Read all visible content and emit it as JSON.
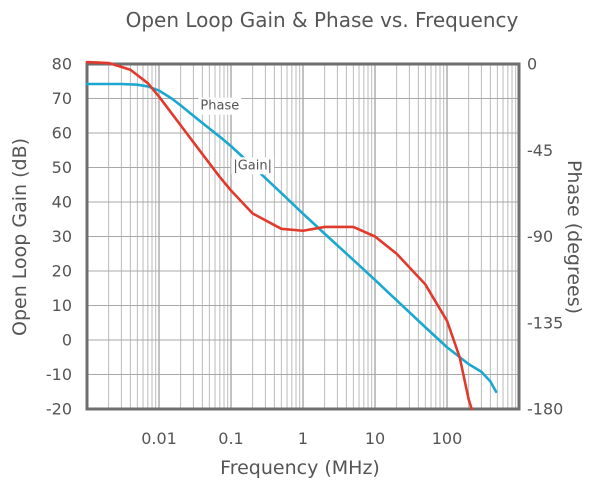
{
  "chart_data": {
    "type": "line",
    "title": "Open Loop Gain & Phase vs. Frequency",
    "xlabel": "Frequency (MHz)",
    "ylabel": "Open Loop Gain (dB)",
    "y2label": "Phase (degrees)",
    "xscale": "log",
    "xlim": [
      0.001,
      1000
    ],
    "ylim": [
      -20,
      80
    ],
    "y2lim": [
      -180,
      0
    ],
    "grid": true,
    "x_ticks": [
      {
        "value": 0.01,
        "label": "0.01"
      },
      {
        "value": 0.1,
        "label": "0.1"
      },
      {
        "value": 1,
        "label": "1"
      },
      {
        "value": 10,
        "label": "10"
      },
      {
        "value": 100,
        "label": "100"
      }
    ],
    "y_ticks": [
      {
        "value": 80,
        "label": "80"
      },
      {
        "value": 70,
        "label": "70"
      },
      {
        "value": 60,
        "label": "60"
      },
      {
        "value": 50,
        "label": "50"
      },
      {
        "value": 40,
        "label": "40"
      },
      {
        "value": 30,
        "label": "30"
      },
      {
        "value": 20,
        "label": "20"
      },
      {
        "value": 10,
        "label": "10"
      },
      {
        "value": 0,
        "label": "0"
      },
      {
        "value": -10,
        "label": "-10"
      },
      {
        "value": -20,
        "label": "-20"
      }
    ],
    "y2_ticks": [
      {
        "value": 0,
        "label": "0"
      },
      {
        "value": -45,
        "label": "-45"
      },
      {
        "value": -90,
        "label": "-90"
      },
      {
        "value": -135,
        "label": "-135"
      },
      {
        "value": -180,
        "label": "-180"
      }
    ],
    "series": [
      {
        "name": "|Gain|",
        "axis": "left",
        "color": "#1aa7d0",
        "label_at": {
          "x": 0.2,
          "y": 50.5
        },
        "points": [
          [
            0.001,
            74.2
          ],
          [
            0.003,
            74.2
          ],
          [
            0.005,
            74.0
          ],
          [
            0.007,
            73.5
          ],
          [
            0.01,
            72.3
          ],
          [
            0.015,
            70.0
          ],
          [
            0.02,
            68.0
          ],
          [
            0.03,
            65.0
          ],
          [
            0.05,
            61.3
          ],
          [
            0.07,
            58.9
          ],
          [
            0.1,
            56.2
          ],
          [
            0.2,
            50.4
          ],
          [
            0.5,
            42.6
          ],
          [
            1,
            36.6
          ],
          [
            2,
            30.8
          ],
          [
            5,
            23.2
          ],
          [
            10,
            17.4
          ],
          [
            20,
            11.5
          ],
          [
            50,
            3.7
          ],
          [
            100,
            -2.1
          ],
          [
            200,
            -7.0
          ],
          [
            300,
            -9.2
          ],
          [
            400,
            -12.0
          ],
          [
            480,
            -15.0
          ]
        ]
      },
      {
        "name": "Phase",
        "axis": "right",
        "color": "#e03a2c",
        "label_at": {
          "x": 0.07,
          "y2": -22
        },
        "points": [
          [
            0.001,
            1.0
          ],
          [
            0.002,
            0.5
          ],
          [
            0.004,
            -3.0
          ],
          [
            0.007,
            -10.0
          ],
          [
            0.01,
            -17.0
          ],
          [
            0.02,
            -32.0
          ],
          [
            0.04,
            -47.0
          ],
          [
            0.07,
            -59.0
          ],
          [
            0.1,
            -66.0
          ],
          [
            0.2,
            -78.0
          ],
          [
            0.5,
            -86.0
          ],
          [
            1,
            -87.0
          ],
          [
            2,
            -85.0
          ],
          [
            5,
            -85.0
          ],
          [
            10,
            -90.0
          ],
          [
            20,
            -99.0
          ],
          [
            50,
            -115.0
          ],
          [
            100,
            -134.0
          ],
          [
            150,
            -153.0
          ],
          [
            200,
            -175.0
          ],
          [
            220,
            -180.0
          ]
        ]
      }
    ]
  }
}
